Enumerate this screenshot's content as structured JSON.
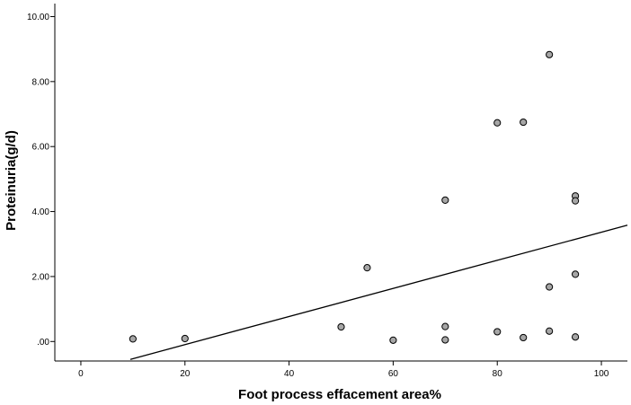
{
  "chart_data": {
    "type": "scatter",
    "xlabel": "Foot process effacement area%",
    "ylabel": "Proteinuria(g/d)",
    "xlim": [
      -5,
      105
    ],
    "ylim": [
      -0.6,
      10.4
    ],
    "x_ticks": [
      0,
      20,
      40,
      60,
      80,
      100
    ],
    "x_tick_labels": [
      "0",
      "20",
      "40",
      "60",
      "80",
      "100"
    ],
    "y_ticks": [
      0,
      2,
      4,
      6,
      8,
      10
    ],
    "y_tick_labels": [
      ".00",
      "2.00",
      "4.00",
      "6.00",
      "8.00",
      "10.00"
    ],
    "grid": false,
    "points": [
      {
        "x": 10,
        "y": 0.08
      },
      {
        "x": 20,
        "y": 0.09
      },
      {
        "x": 50,
        "y": 0.45
      },
      {
        "x": 55,
        "y": 2.27
      },
      {
        "x": 60,
        "y": 0.04
      },
      {
        "x": 70,
        "y": 4.35
      },
      {
        "x": 70,
        "y": 0.46
      },
      {
        "x": 70,
        "y": 0.05
      },
      {
        "x": 80,
        "y": 6.73
      },
      {
        "x": 80,
        "y": 0.3
      },
      {
        "x": 85,
        "y": 6.75
      },
      {
        "x": 85,
        "y": 0.12
      },
      {
        "x": 90,
        "y": 8.83
      },
      {
        "x": 90,
        "y": 1.68
      },
      {
        "x": 90,
        "y": 0.32
      },
      {
        "x": 95,
        "y": 4.48
      },
      {
        "x": 95,
        "y": 4.33
      },
      {
        "x": 95,
        "y": 2.07
      },
      {
        "x": 95,
        "y": 0.14
      }
    ],
    "fit_line": {
      "x": [
        9.5,
        105
      ],
      "y": [
        -0.55,
        3.58
      ]
    },
    "point_color": "#a6a6a6",
    "line_color": "#000000"
  }
}
